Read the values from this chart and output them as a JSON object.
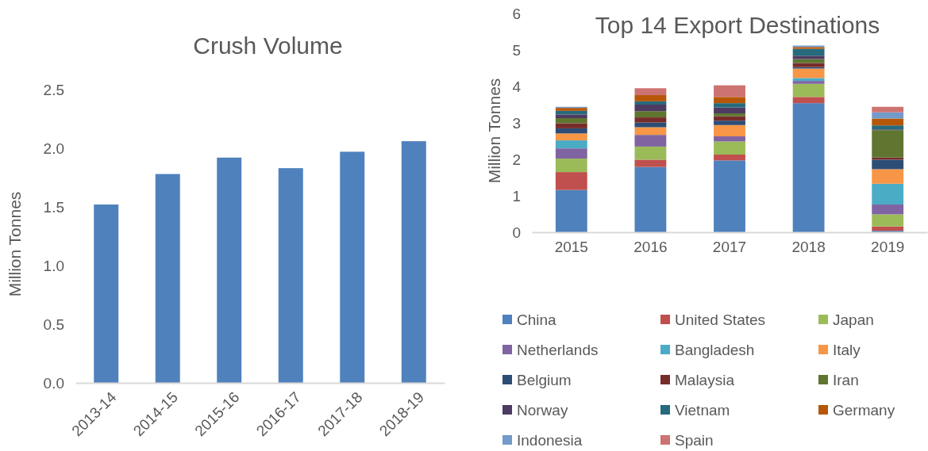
{
  "chart_data": [
    {
      "type": "bar",
      "title": "Crush Volume",
      "ylabel": "Million Tonnes",
      "categories": [
        "2013-14",
        "2014-15",
        "2015-16",
        "2016-17",
        "2017-18",
        "2018-19"
      ],
      "values": [
        1.52,
        1.78,
        1.92,
        1.83,
        1.97,
        2.06
      ],
      "color": "#4f81bd",
      "ylim": [
        0,
        2.5
      ],
      "yticks": [
        {
          "value": 0,
          "label": "0.0"
        },
        0.5,
        {
          "value": 1,
          "label": "1.0"
        },
        1.5,
        {
          "value": 2,
          "label": "2.0"
        },
        2.5
      ],
      "grid": false
    },
    {
      "type": "bar",
      "title": "Top 14 Export Destinations",
      "ylabel": "Million Tonnes",
      "stacked": true,
      "legend": "bottom",
      "grid": false,
      "categories": [
        "2015",
        "2016",
        "2017",
        "2018",
        "2019"
      ],
      "ylim": [
        0,
        6
      ],
      "yticks": [
        0,
        1,
        2,
        3,
        4,
        5,
        6
      ],
      "series": [
        {
          "name": "China",
          "color": "#4f81bd",
          "values": [
            1.16,
            1.79,
            1.97,
            3.54,
            0.04
          ]
        },
        {
          "name": "United States",
          "color": "#c0504d",
          "values": [
            0.49,
            0.2,
            0.16,
            0.17,
            0.12
          ]
        },
        {
          "name": "Japan",
          "color": "#9bbb59",
          "values": [
            0.37,
            0.36,
            0.36,
            0.36,
            0.33
          ]
        },
        {
          "name": "Netherlands",
          "color": "#8064a2",
          "values": [
            0.28,
            0.32,
            0.14,
            0.08,
            0.27
          ]
        },
        {
          "name": "Bangladesh",
          "color": "#4bacc6",
          "values": [
            0.22,
            0,
            0,
            0.08,
            0.57
          ]
        },
        {
          "name": "Italy",
          "color": "#f79646",
          "values": [
            0.19,
            0.21,
            0.31,
            0.26,
            0.4
          ]
        },
        {
          "name": "Belgium",
          "color": "#2c4d75",
          "values": [
            0.14,
            0.13,
            0.12,
            0.04,
            0.26
          ]
        },
        {
          "name": "Malaysia",
          "color": "#772c2a",
          "values": [
            0.14,
            0.14,
            0.12,
            0.11,
            0.06
          ]
        },
        {
          "name": "Iran",
          "color": "#5f7530",
          "values": [
            0.14,
            0.17,
            0.08,
            0.11,
            0.75
          ]
        },
        {
          "name": "Norway",
          "color": "#4d3b62",
          "values": [
            0.1,
            0.18,
            0.16,
            0.09,
            0.02
          ]
        },
        {
          "name": "Vietnam",
          "color": "#276a7c",
          "values": [
            0.1,
            0.09,
            0.12,
            0.19,
            0.11
          ]
        },
        {
          "name": "Germany",
          "color": "#b65708",
          "values": [
            0.08,
            0.17,
            0.17,
            0.05,
            0.19
          ]
        },
        {
          "name": "Indonesia",
          "color": "#729aca",
          "values": [
            0.03,
            0,
            0,
            0.04,
            0.17
          ]
        },
        {
          "name": "Spain",
          "color": "#cd7371",
          "values": [
            0,
            0.19,
            0.32,
            0,
            0.15
          ]
        }
      ]
    }
  ]
}
